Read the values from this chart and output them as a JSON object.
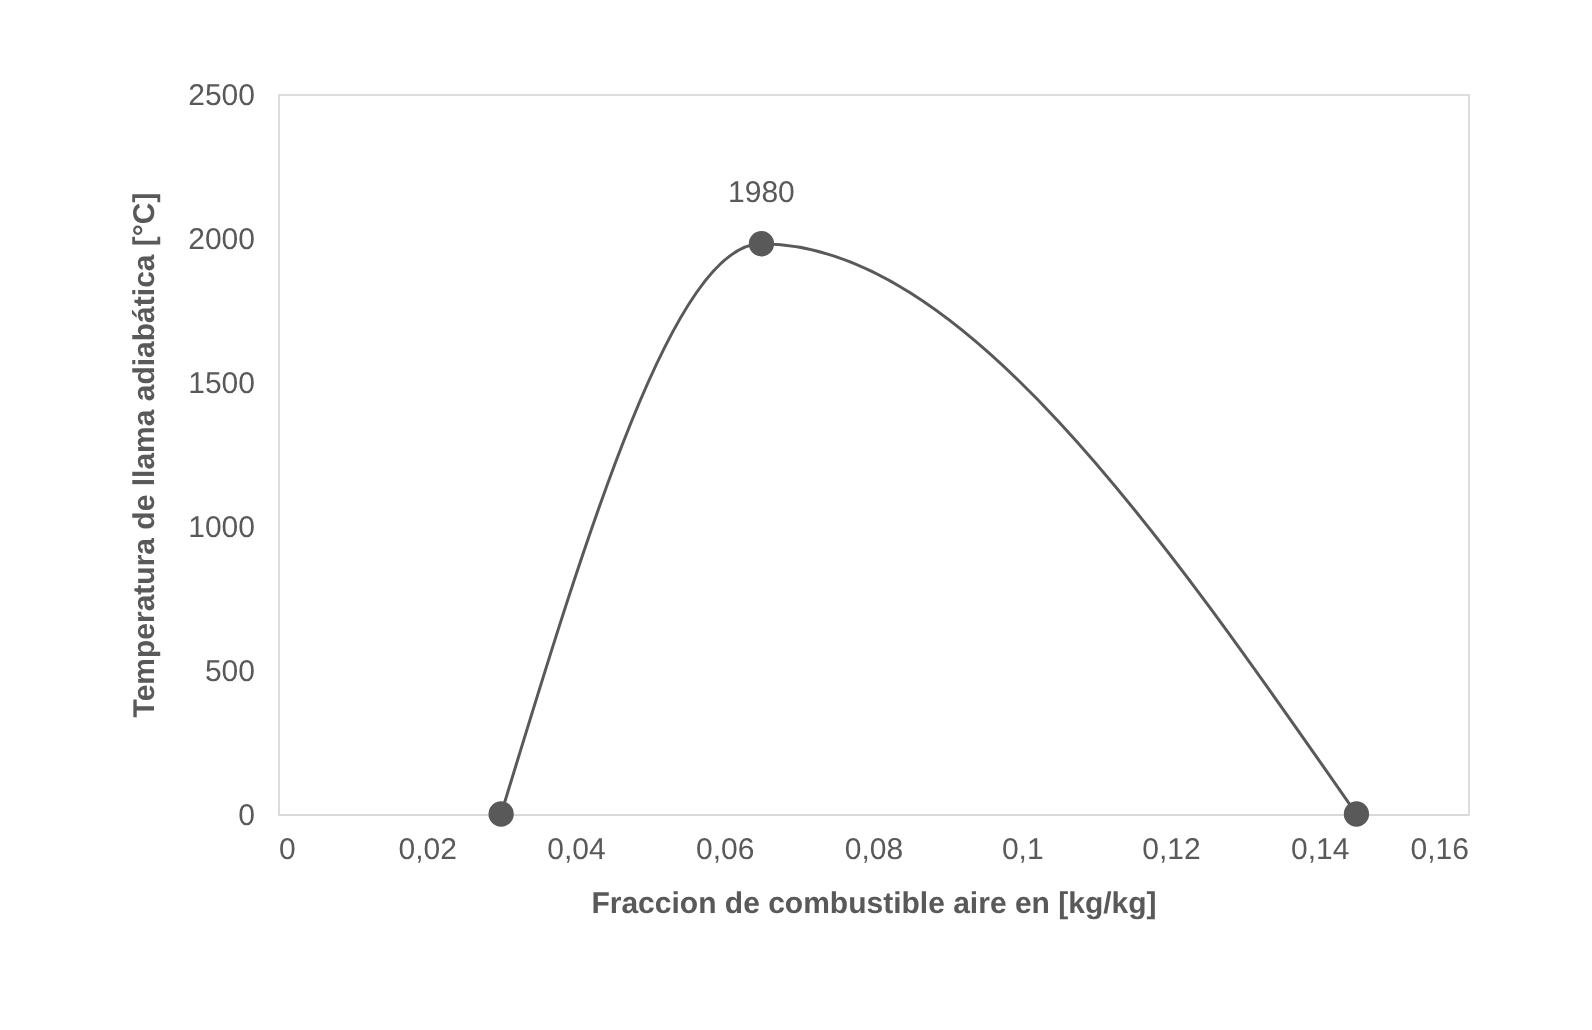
{
  "chart_data": {
    "type": "line",
    "xlabel": "Fraccion de combustible aire en [kg/kg]",
    "ylabel": "Temperatura de llama adiabática [°C]",
    "x": [
      0.03,
      0.065,
      0.145
    ],
    "series": [
      {
        "color": "#595959",
        "values": [
          0,
          1980,
          0
        ],
        "value_labels": [
          null,
          "1980",
          null
        ]
      }
    ],
    "marker": "circle",
    "line_style": "solid",
    "grid": false,
    "xlim": [
      0,
      0.16
    ],
    "xticks": [
      0,
      {
        "value": 0.02,
        "label": "0,02"
      },
      {
        "value": 0.04,
        "label": "0,04"
      },
      {
        "value": 0.06,
        "label": "0,06"
      },
      {
        "value": 0.08,
        "label": "0,08"
      },
      {
        "value": 0.1,
        "label": "0,1"
      },
      {
        "value": 0.12,
        "label": "0,12"
      },
      {
        "value": 0.14,
        "label": "0,14"
      },
      {
        "value": 0.16,
        "label": "0,16"
      }
    ],
    "ylim": [
      0,
      2500
    ],
    "yticks": [
      0,
      500,
      1000,
      1500,
      2000,
      2500
    ]
  }
}
